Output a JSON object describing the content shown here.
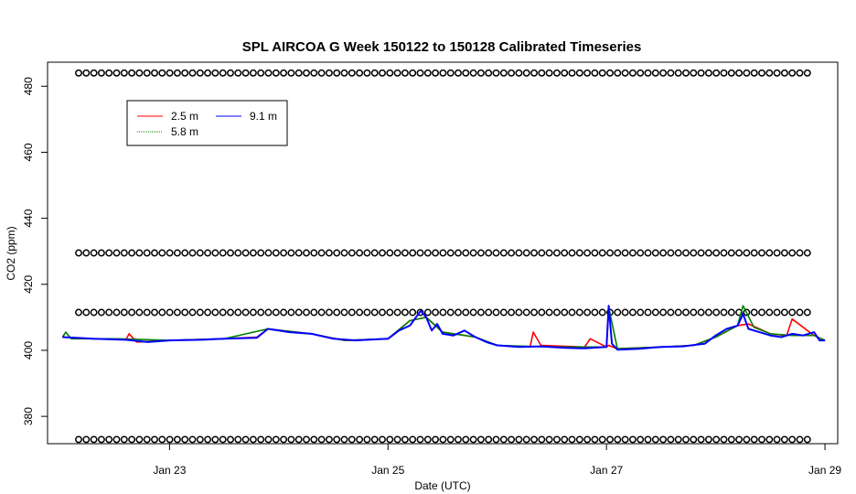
{
  "chart_data": {
    "type": "line",
    "title": "SPL AIRCOA G  Week 150122 to 150128  Calibrated Timeseries",
    "xlabel": "Date (UTC)",
    "ylabel": "CO2 (ppm)",
    "x_ticks": [
      "Jan 23",
      "Jan 25",
      "Jan 27",
      "Jan 29"
    ],
    "x_tick_days": [
      23,
      25,
      27,
      29
    ],
    "xlim_days": [
      21.9,
      29.1
    ],
    "y_ticks": [
      380,
      400,
      420,
      440,
      460,
      480
    ],
    "ylim": [
      372,
      487
    ],
    "grid": false,
    "legend_position": "top-left",
    "series": [
      {
        "name": "2.5 m",
        "color": "#ff0000",
        "x_days": [
          22.02,
          22.3,
          22.6,
          22.63,
          22.7,
          23.0,
          23.5,
          23.8,
          23.9,
          24.3,
          24.6,
          25.0,
          25.2,
          25.35,
          25.5,
          25.8,
          26.0,
          26.3,
          26.33,
          26.4,
          26.8,
          26.85,
          27.0,
          27.02,
          27.1,
          27.5,
          27.8,
          28.0,
          28.2,
          28.3,
          28.5,
          28.65,
          28.7,
          28.9,
          29.0
        ],
        "values": [
          404,
          403.5,
          403.2,
          405,
          402.5,
          403,
          403.5,
          404,
          406.5,
          405,
          403,
          403.5,
          409,
          410,
          405.5,
          404,
          401.5,
          401,
          405.5,
          401.5,
          401,
          403.5,
          401,
          401.5,
          400.5,
          401,
          401.5,
          404,
          407.5,
          408,
          405,
          404.5,
          409.5,
          404.5,
          403
        ]
      },
      {
        "name": "5.8 m",
        "color": "#008000",
        "x_days": [
          22.02,
          22.05,
          22.1,
          22.5,
          23.0,
          23.5,
          23.9,
          24.3,
          24.6,
          25.0,
          25.2,
          25.35,
          25.5,
          25.8,
          26.0,
          26.5,
          26.8,
          27.0,
          27.02,
          27.1,
          27.5,
          27.8,
          28.0,
          28.2,
          28.25,
          28.35,
          28.5,
          28.7,
          28.9,
          29.0
        ],
        "values": [
          404,
          405.5,
          403.5,
          403.5,
          403,
          403.5,
          406.5,
          405,
          403,
          403.5,
          409,
          410,
          405.5,
          404,
          401.5,
          401,
          401,
          401,
          413,
          400.5,
          401,
          401.5,
          404,
          407.5,
          413.5,
          407,
          405,
          404.5,
          404.5,
          403
        ]
      },
      {
        "name": "9.1 m",
        "color": "#0000ff",
        "x_days": [
          22.02,
          22.3,
          22.6,
          22.8,
          23.0,
          23.3,
          23.5,
          23.8,
          23.9,
          24.1,
          24.3,
          24.5,
          24.7,
          25.0,
          25.1,
          25.2,
          25.3,
          25.35,
          25.4,
          25.45,
          25.5,
          25.6,
          25.7,
          25.8,
          25.9,
          26.0,
          26.2,
          26.4,
          26.6,
          26.8,
          27.0,
          27.02,
          27.05,
          27.1,
          27.3,
          27.5,
          27.7,
          27.9,
          28.0,
          28.1,
          28.2,
          28.25,
          28.3,
          28.4,
          28.5,
          28.6,
          28.7,
          28.8,
          28.9,
          28.95,
          29.0
        ],
        "values": [
          404,
          403.5,
          403.2,
          402.5,
          403,
          403.2,
          403.5,
          403.8,
          406.5,
          405.5,
          405,
          403.5,
          403,
          403.5,
          406,
          407.5,
          412,
          410,
          406,
          408,
          405,
          404.5,
          406,
          404,
          402.5,
          401.5,
          401,
          401.2,
          400.8,
          400.6,
          401,
          413.5,
          402,
          400.2,
          400.5,
          401,
          401.2,
          402,
          404.5,
          406.5,
          407.5,
          411,
          406.5,
          405.5,
          404.5,
          404,
          405,
          404.5,
          405.5,
          403,
          403
        ]
      }
    ],
    "flag_rows": {
      "marker": "o",
      "color": "#000000",
      "y_values": [
        484,
        429.5,
        411.5,
        373
      ]
    }
  }
}
